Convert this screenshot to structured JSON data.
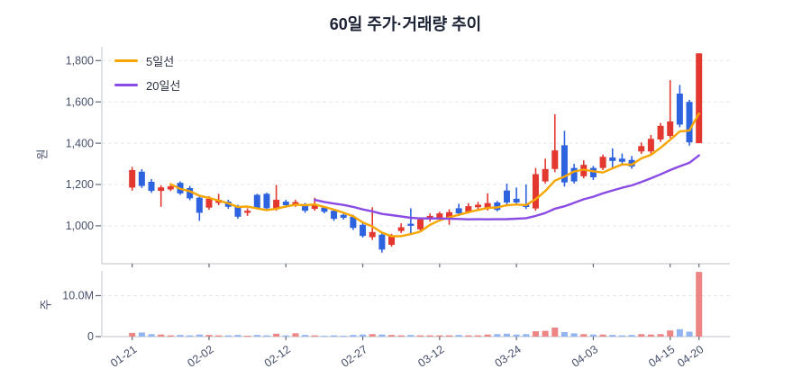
{
  "title": "60일 주가·거래량 추이",
  "legend": [
    {
      "label": "5일선",
      "color": "#f7a600"
    },
    {
      "label": "20일선",
      "color": "#8a4be4"
    }
  ],
  "price_axis": {
    "label": "원",
    "tick_labels": [
      "1,800",
      "1,600",
      "1,400",
      "1,200",
      "1,000"
    ],
    "tick_values": [
      1800,
      1600,
      1400,
      1200,
      1000
    ]
  },
  "volume_axis": {
    "label": "주",
    "tick_labels": [
      "10.0M",
      "0"
    ],
    "tick_values": [
      10,
      0
    ],
    "unit": "M"
  },
  "x_axis": {
    "tick_labels": [
      "01-21",
      "02-02",
      "02-12",
      "02-27",
      "03-12",
      "03-24",
      "04-03",
      "04-15",
      "04-20"
    ],
    "tick_indices": [
      0,
      8,
      16,
      24,
      32,
      40,
      48,
      56,
      59
    ]
  },
  "chart_data": {
    "type": "candlestick",
    "title": "60일 주가·거래량 추이",
    "ylabel_price": "원",
    "ylabel_volume": "주",
    "num_days": 60,
    "price_gridlines": [
      1800,
      1600,
      1400,
      1200,
      1000
    ],
    "volume_gridline_M": 10,
    "legend_position": "top-left",
    "colors": {
      "up": "#e2382f",
      "down": "#2e63e0",
      "ma5": "#f7a600",
      "ma20": "#8a4be4",
      "volume_up": "#ee8585",
      "volume_down": "#92b4f0"
    },
    "moving_averages": [
      {
        "name": "5일선",
        "window": 5
      },
      {
        "name": "20일선",
        "window": 20
      }
    ],
    "ohlcv_note": "open, high, low, close (KRW), volume (millions of shares)",
    "candles_ohlcv": [
      [
        1185,
        1285,
        1170,
        1270,
        0.9
      ],
      [
        1262,
        1274,
        1183,
        1193,
        1.0
      ],
      [
        1213,
        1226,
        1160,
        1169,
        0.6
      ],
      [
        1169,
        1196,
        1092,
        1186,
        0.5
      ],
      [
        1176,
        1202,
        1168,
        1191,
        0.3
      ],
      [
        1208,
        1215,
        1150,
        1157,
        0.4
      ],
      [
        1183,
        1193,
        1124,
        1133,
        0.3
      ],
      [
        1136,
        1150,
        1024,
        1063,
        0.5
      ],
      [
        1088,
        1143,
        1078,
        1131,
        0.4
      ],
      [
        1111,
        1155,
        1100,
        1126,
        0.3
      ],
      [
        1117,
        1126,
        1082,
        1092,
        0.3
      ],
      [
        1092,
        1102,
        1034,
        1044,
        0.4
      ],
      [
        1063,
        1085,
        1048,
        1073,
        0.2
      ],
      [
        1150,
        1155,
        1080,
        1085,
        0.4
      ],
      [
        1155,
        1160,
        1080,
        1085,
        0.3
      ],
      [
        1085,
        1198,
        1073,
        1126,
        0.7
      ],
      [
        1117,
        1126,
        1088,
        1100,
        0.3
      ],
      [
        1098,
        1126,
        1092,
        1115,
        0.8
      ],
      [
        1100,
        1111,
        1063,
        1073,
        0.4
      ],
      [
        1082,
        1136,
        1073,
        1102,
        0.3
      ],
      [
        1088,
        1095,
        1060,
        1068,
        0.2
      ],
      [
        1073,
        1082,
        1024,
        1034,
        0.3
      ],
      [
        1053,
        1063,
        1030,
        1039,
        0.2
      ],
      [
        1044,
        1053,
        980,
        990,
        0.4
      ],
      [
        1005,
        1015,
        943,
        951,
        0.5
      ],
      [
        945,
        1090,
        932,
        970,
        0.6
      ],
      [
        957,
        965,
        870,
        885,
        0.5
      ],
      [
        908,
        961,
        899,
        951,
        0.4
      ],
      [
        975,
        1012,
        965,
        993,
        0.3
      ],
      [
        1010,
        1085,
        963,
        1000,
        0.4
      ],
      [
        983,
        1041,
        975,
        1031,
        0.3
      ],
      [
        1031,
        1060,
        1020,
        1048,
        0.3
      ],
      [
        1034,
        1068,
        1028,
        1060,
        0.3
      ],
      [
        1037,
        1080,
        1005,
        1066,
        0.3
      ],
      [
        1085,
        1107,
        1048,
        1060,
        0.4
      ],
      [
        1068,
        1110,
        1060,
        1095,
        0.3
      ],
      [
        1090,
        1116,
        1080,
        1102,
        0.3
      ],
      [
        1085,
        1157,
        1074,
        1110,
        0.5
      ],
      [
        1113,
        1120,
        1070,
        1077,
        0.6
      ],
      [
        1171,
        1204,
        1102,
        1113,
        0.7
      ],
      [
        1131,
        1185,
        1099,
        1113,
        0.5
      ],
      [
        1106,
        1200,
        1081,
        1091,
        0.6
      ],
      [
        1084,
        1280,
        1073,
        1250,
        1.3
      ],
      [
        1215,
        1325,
        1205,
        1275,
        1.4
      ],
      [
        1275,
        1540,
        1260,
        1365,
        2.2
      ],
      [
        1390,
        1460,
        1190,
        1210,
        1.1
      ],
      [
        1280,
        1300,
        1205,
        1215,
        0.8
      ],
      [
        1240,
        1317,
        1230,
        1295,
        0.6
      ],
      [
        1280,
        1290,
        1222,
        1235,
        0.5
      ],
      [
        1280,
        1345,
        1270,
        1334,
        0.5
      ],
      [
        1331,
        1375,
        1280,
        1314,
        0.4
      ],
      [
        1325,
        1350,
        1290,
        1310,
        0.3
      ],
      [
        1319,
        1338,
        1276,
        1287,
        0.4
      ],
      [
        1360,
        1404,
        1348,
        1386,
        0.6
      ],
      [
        1360,
        1440,
        1348,
        1421,
        0.5
      ],
      [
        1418,
        1498,
        1406,
        1484,
        0.6
      ],
      [
        1435,
        1705,
        1425,
        1505,
        1.5
      ],
      [
        1640,
        1682,
        1477,
        1490,
        1.8
      ],
      [
        1600,
        1610,
        1388,
        1404,
        1.2
      ],
      [
        1400,
        1835,
        1400,
        1835,
        15.8
      ]
    ]
  }
}
